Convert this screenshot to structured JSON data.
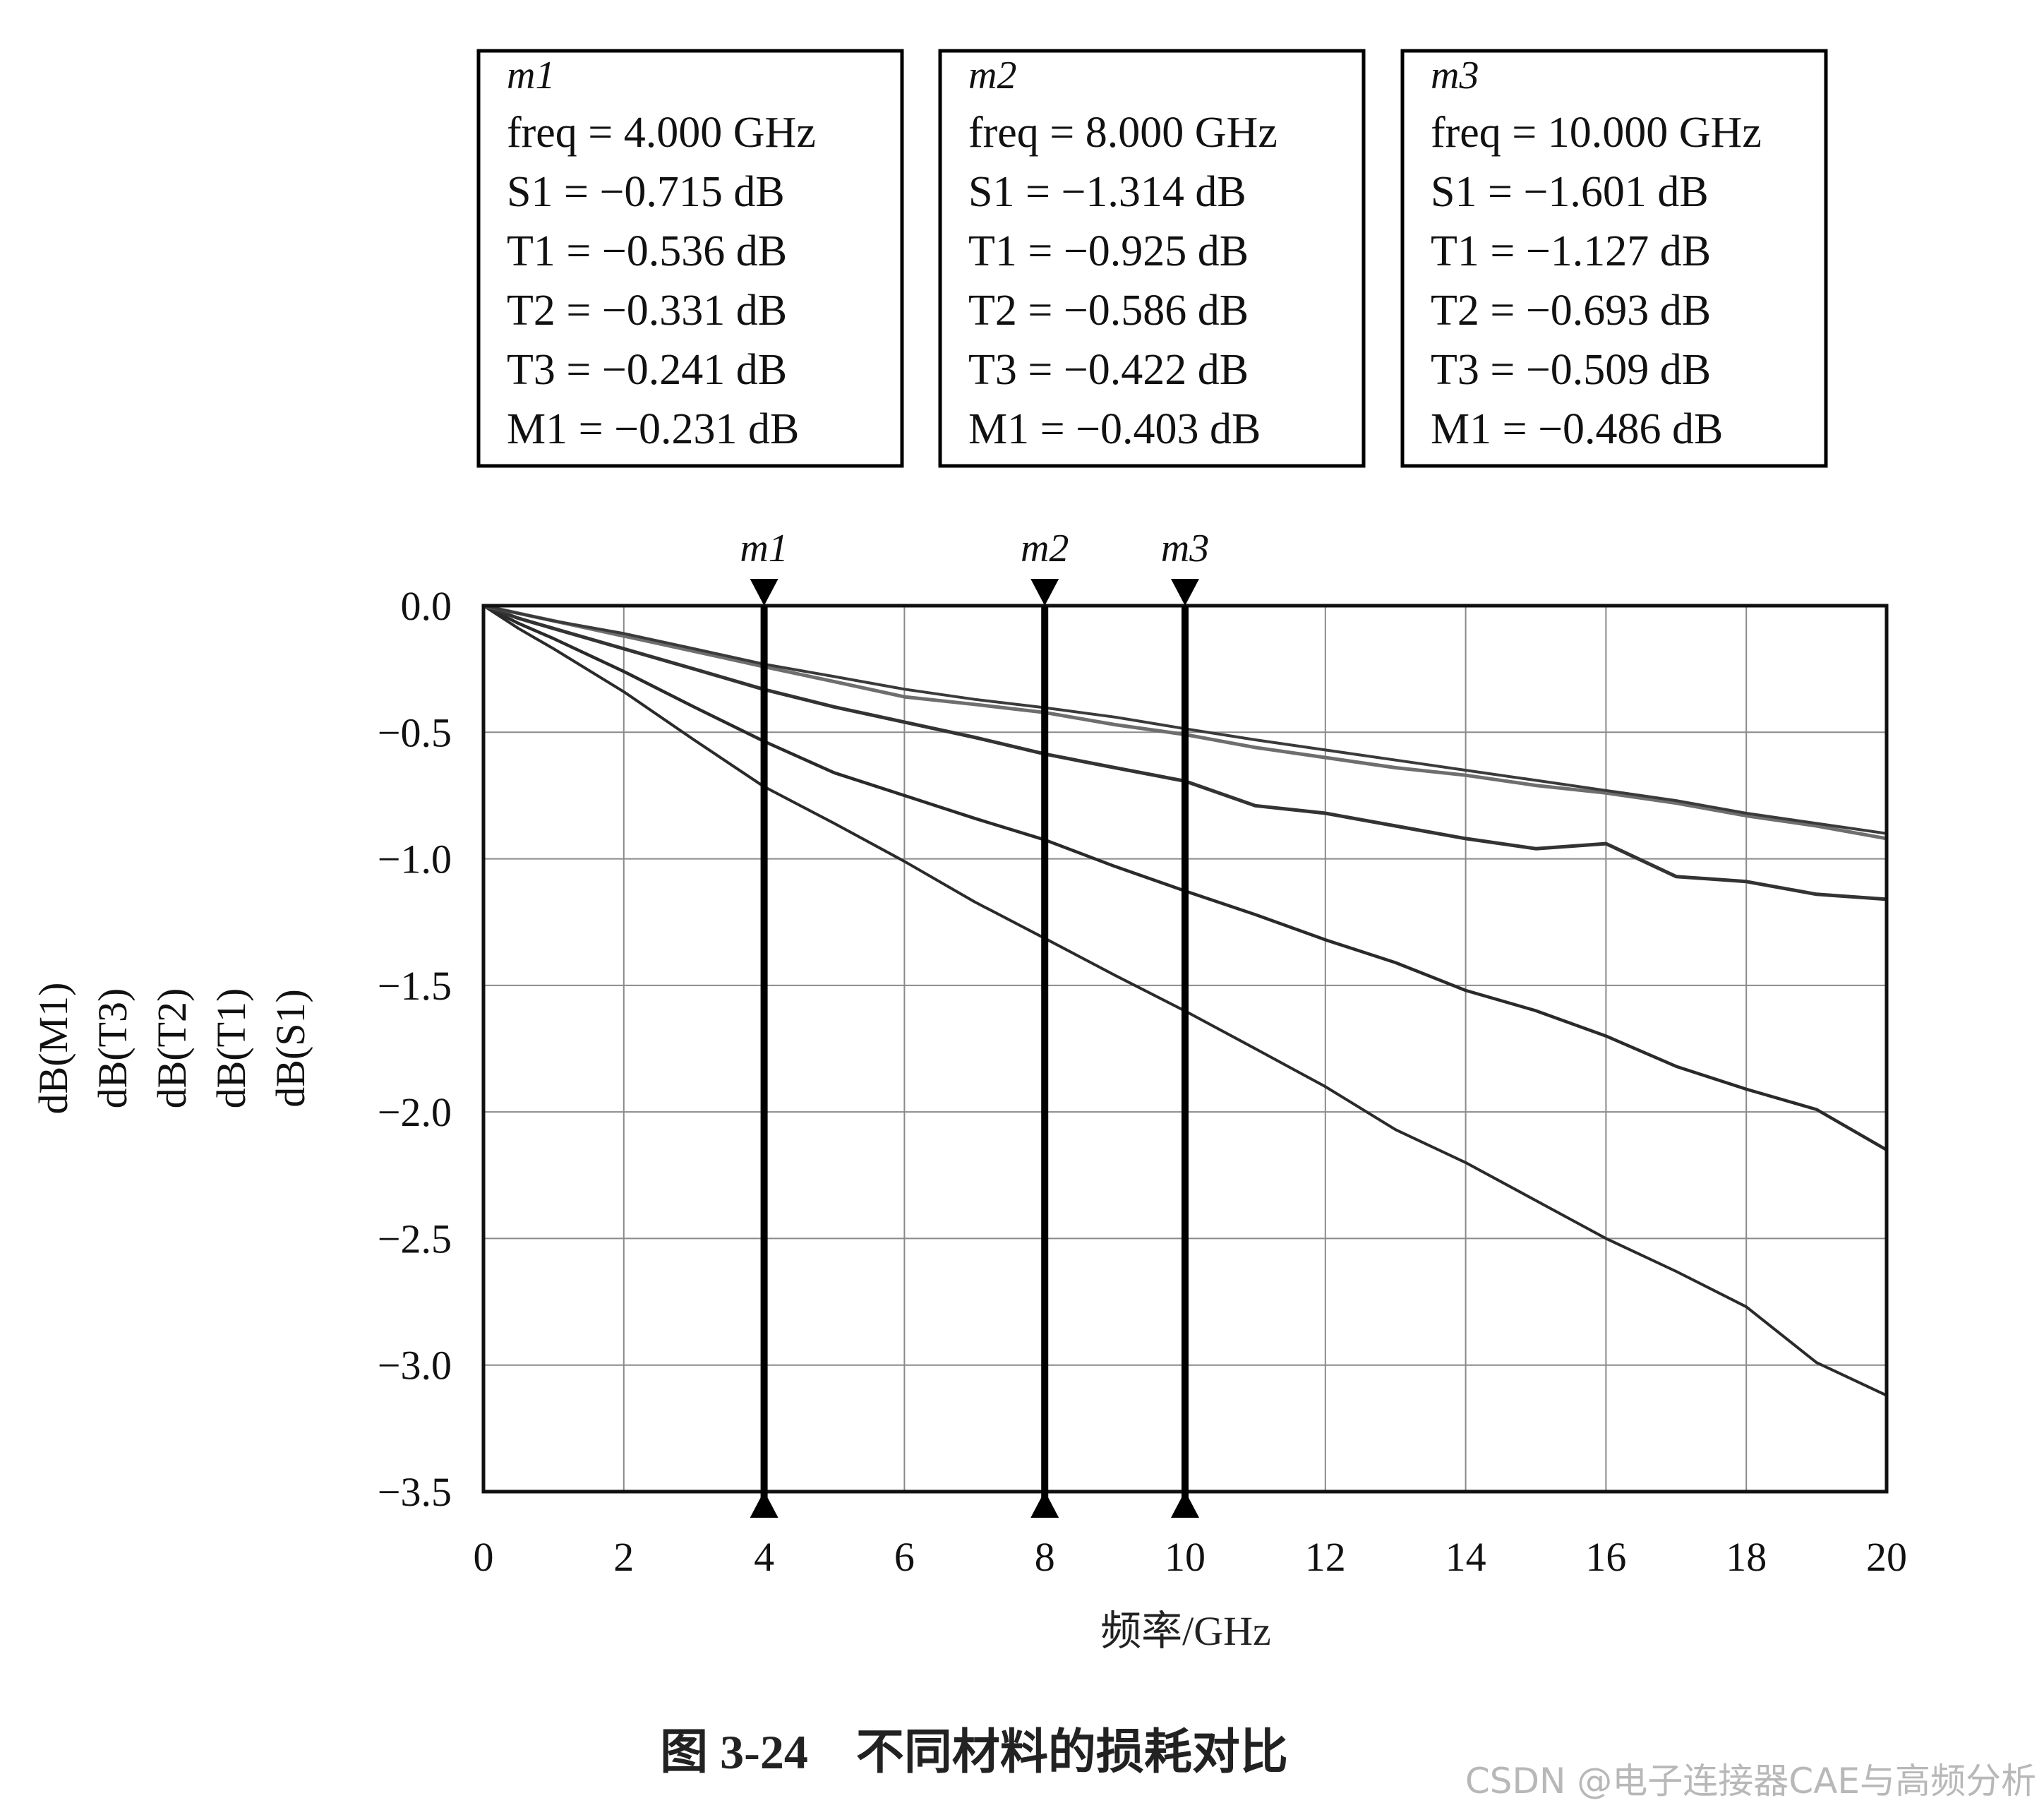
{
  "chart_data": {
    "type": "line",
    "title": "",
    "xlabel": "频率/GHz",
    "ylabel_lines": [
      "dB(M1)",
      "dB(T3)",
      "dB(T2)",
      "dB(T1)",
      "dB(S1)"
    ],
    "xlim": [
      0,
      20
    ],
    "ylim": [
      -3.5,
      0.0
    ],
    "x_ticks": [
      "0",
      "2",
      "4",
      "6",
      "8",
      "10",
      "12",
      "14",
      "16",
      "18",
      "20"
    ],
    "y_ticks": [
      "0.0",
      "−0.5",
      "−1.0",
      "−1.5",
      "−2.0",
      "−2.5",
      "−3.0",
      "−3.5"
    ],
    "grid": true,
    "series": [
      {
        "name": "S1",
        "x": [
          0,
          0.5,
          1,
          2,
          3,
          4,
          5,
          6,
          7,
          8,
          9,
          10,
          11,
          12,
          13,
          14,
          15,
          16,
          17,
          18,
          19,
          20
        ],
        "y": [
          0,
          -0.09,
          -0.17,
          -0.34,
          -0.53,
          -0.715,
          -0.86,
          -1.01,
          -1.17,
          -1.314,
          -1.46,
          -1.601,
          -1.75,
          -1.9,
          -2.07,
          -2.2,
          -2.35,
          -2.5,
          -2.63,
          -2.77,
          -2.99,
          -3.12
        ]
      },
      {
        "name": "T1",
        "x": [
          0,
          0.5,
          1,
          2,
          3,
          4,
          5,
          6,
          7,
          8,
          9,
          10,
          11,
          12,
          13,
          14,
          15,
          16,
          17,
          18,
          19,
          20
        ],
        "y": [
          0,
          -0.07,
          -0.13,
          -0.26,
          -0.4,
          -0.536,
          -0.66,
          -0.75,
          -0.84,
          -0.925,
          -1.03,
          -1.127,
          -1.22,
          -1.32,
          -1.41,
          -1.52,
          -1.6,
          -1.7,
          -1.82,
          -1.91,
          -1.99,
          -2.15
        ]
      },
      {
        "name": "T2",
        "x": [
          0,
          0.5,
          1,
          2,
          3,
          4,
          5,
          6,
          7,
          8,
          9,
          10,
          11,
          12,
          13,
          14,
          15,
          16,
          17,
          18,
          19,
          20
        ],
        "y": [
          0,
          -0.05,
          -0.09,
          -0.17,
          -0.25,
          -0.331,
          -0.4,
          -0.46,
          -0.52,
          -0.586,
          -0.64,
          -0.693,
          -0.79,
          -0.82,
          -0.87,
          -0.92,
          -0.96,
          -0.94,
          -1.07,
          -1.09,
          -1.14,
          -1.16
        ]
      },
      {
        "name": "T3",
        "x": [
          0,
          0.5,
          1,
          2,
          3,
          4,
          5,
          6,
          7,
          8,
          9,
          10,
          11,
          12,
          13,
          14,
          15,
          16,
          17,
          18,
          19,
          20
        ],
        "y": [
          0,
          -0.03,
          -0.06,
          -0.12,
          -0.18,
          -0.241,
          -0.3,
          -0.36,
          -0.39,
          -0.422,
          -0.47,
          -0.509,
          -0.56,
          -0.6,
          -0.64,
          -0.67,
          -0.71,
          -0.74,
          -0.78,
          -0.83,
          -0.87,
          -0.92
        ]
      },
      {
        "name": "M1",
        "x": [
          0,
          0.5,
          1,
          2,
          3,
          4,
          5,
          6,
          7,
          8,
          9,
          10,
          11,
          12,
          13,
          14,
          15,
          16,
          17,
          18,
          19,
          20
        ],
        "y": [
          0,
          -0.03,
          -0.06,
          -0.11,
          -0.17,
          -0.231,
          -0.28,
          -0.33,
          -0.37,
          -0.403,
          -0.44,
          -0.486,
          -0.53,
          -0.57,
          -0.61,
          -0.65,
          -0.69,
          -0.73,
          -0.77,
          -0.82,
          -0.86,
          -0.9
        ]
      }
    ],
    "markers": [
      {
        "id": "m1",
        "x": 4,
        "freq": "freq = 4.000 GHz",
        "S1": "S1 = −0.715 dB",
        "T1": "T1 = −0.536 dB",
        "T2": "T2 = −0.331 dB",
        "T3": "T3 = −0.241 dB",
        "M1": "M1 = −0.231 dB"
      },
      {
        "id": "m2",
        "x": 8,
        "freq": "freq = 8.000 GHz",
        "S1": "S1 = −1.314 dB",
        "T1": "T1 = −0.925 dB",
        "T2": "T2 = −0.586 dB",
        "T3": "T3 = −0.422 dB",
        "M1": "M1 = −0.403 dB"
      },
      {
        "id": "m3",
        "x": 10,
        "freq": "freq = 10.000 GHz",
        "S1": "S1 = −1.601 dB",
        "T1": "T1 = −1.127 dB",
        "T2": "T2 = −0.693 dB",
        "T3": "T3 = −0.509 dB",
        "M1": "M1 = −0.486 dB"
      }
    ],
    "colors": {
      "S1": "#2a2a2a",
      "T1": "#2a2a2a",
      "T2": "#333333",
      "T3": "#6e6e6e",
      "M1": "#3a3a3a",
      "grid": "#8a8a8a",
      "axis": "#111111"
    }
  },
  "caption": "图 3-24    不同材料的损耗对比",
  "watermark": "CSDN @电子连接器CAE与高频分析"
}
